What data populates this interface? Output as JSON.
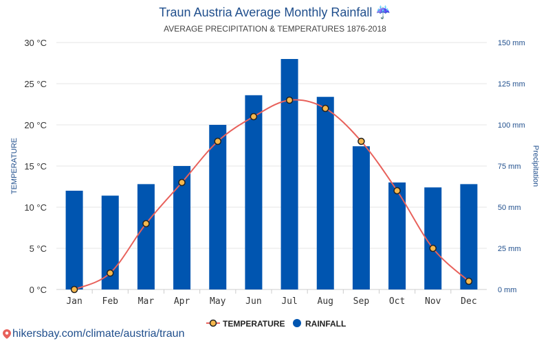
{
  "header": {
    "title": "Traun Austria Average Monthly Rainfall ☔",
    "subtitle": "AVERAGE PRECIPITATION & TEMPERATURES 1876-2018"
  },
  "footer": {
    "source_text": "hikersbay.com/climate/austria/traun"
  },
  "colors": {
    "bar": "#0055b0",
    "line": "#e8615b",
    "point_fill": "#f6b84d",
    "point_stroke": "#222222",
    "title": "#1f4e8c"
  },
  "chart_data": {
    "type": "bar",
    "categories": [
      "Jan",
      "Feb",
      "Mar",
      "Apr",
      "May",
      "Jun",
      "Jul",
      "Aug",
      "Sep",
      "Oct",
      "Nov",
      "Dec"
    ],
    "series": [
      {
        "name": "RAINFALL",
        "type": "bar",
        "axis": "right",
        "unit": "mm",
        "values": [
          60,
          57,
          64,
          75,
          100,
          118,
          140,
          117,
          87,
          65,
          62,
          64
        ]
      },
      {
        "name": "TEMPERATURE",
        "type": "line",
        "axis": "left",
        "unit": "°C",
        "values": [
          0,
          2,
          8,
          13,
          18,
          21,
          23,
          22,
          18,
          12,
          5,
          1
        ]
      }
    ],
    "ylabel_left": "TEMPERATURE",
    "ylabel_right": "Precipitation",
    "ylim_left": [
      0,
      30
    ],
    "ylim_right": [
      0,
      150
    ],
    "yticks_left": [
      "0 °C",
      "5 °C",
      "10 °C",
      "15 °C",
      "20 °C",
      "25 °C",
      "30 °C"
    ],
    "yticks_right": [
      "0 mm",
      "25 mm",
      "50 mm",
      "75 mm",
      "100 mm",
      "125 mm",
      "150 mm"
    ],
    "grid": true,
    "legend_position": "bottom-center",
    "legend": [
      "TEMPERATURE",
      "RAINFALL"
    ]
  }
}
